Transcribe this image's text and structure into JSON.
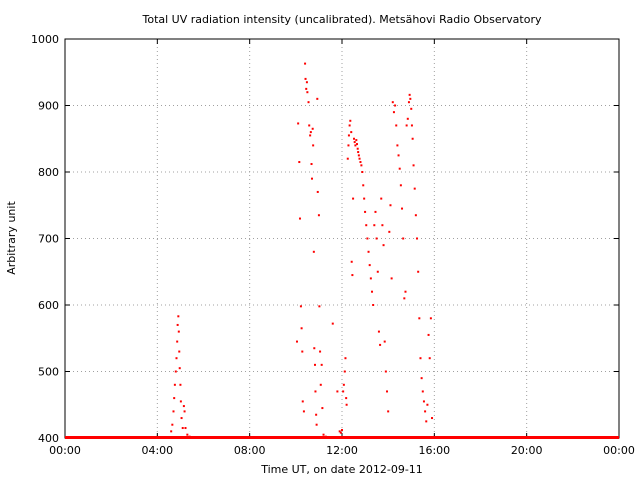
{
  "chart_data": {
    "type": "scatter",
    "title": "Total UV radiation intensity (uncalibrated). Metsähovi Radio Observatory",
    "xlabel": "Time UT, on date 2012-09-11",
    "ylabel": "Arbitrary unit",
    "xlim_hours": [
      0,
      24
    ],
    "ylim": [
      400,
      1000
    ],
    "x_ticks": [
      {
        "hour": 0,
        "label": "00:00"
      },
      {
        "hour": 4,
        "label": "04:00"
      },
      {
        "hour": 8,
        "label": "08:00"
      },
      {
        "hour": 12,
        "label": "12:00"
      },
      {
        "hour": 16,
        "label": "16:00"
      },
      {
        "hour": 20,
        "label": "20:00"
      },
      {
        "hour": 24,
        "label": "00:00"
      }
    ],
    "y_ticks": [
      400,
      500,
      600,
      700,
      800,
      900,
      1000
    ],
    "grid": true,
    "marker_color": "#ff0000",
    "baseline": {
      "value": 400,
      "from_hour": 0,
      "to_hour": 24
    },
    "points": [
      [
        4.6,
        410
      ],
      [
        4.65,
        420
      ],
      [
        4.7,
        440
      ],
      [
        4.73,
        460
      ],
      [
        4.76,
        480
      ],
      [
        4.8,
        500
      ],
      [
        4.83,
        520
      ],
      [
        4.86,
        545
      ],
      [
        4.88,
        570
      ],
      [
        4.91,
        583
      ],
      [
        4.93,
        560
      ],
      [
        4.95,
        530
      ],
      [
        4.97,
        505
      ],
      [
        5.0,
        480
      ],
      [
        5.02,
        455
      ],
      [
        5.05,
        430
      ],
      [
        5.1,
        415
      ],
      [
        5.15,
        448
      ],
      [
        5.18,
        440
      ],
      [
        5.22,
        415
      ],
      [
        5.3,
        405
      ],
      [
        5.4,
        402
      ],
      [
        10.05,
        545
      ],
      [
        10.1,
        873
      ],
      [
        10.15,
        815
      ],
      [
        10.18,
        730
      ],
      [
        10.22,
        598
      ],
      [
        10.25,
        565
      ],
      [
        10.28,
        530
      ],
      [
        10.3,
        455
      ],
      [
        10.35,
        440
      ],
      [
        10.4,
        963
      ],
      [
        10.42,
        940
      ],
      [
        10.45,
        925
      ],
      [
        10.48,
        935
      ],
      [
        10.5,
        920
      ],
      [
        10.55,
        905
      ],
      [
        10.58,
        870
      ],
      [
        10.62,
        855
      ],
      [
        10.65,
        860
      ],
      [
        10.68,
        812
      ],
      [
        10.7,
        790
      ],
      [
        10.73,
        865
      ],
      [
        10.75,
        840
      ],
      [
        10.78,
        680
      ],
      [
        10.8,
        535
      ],
      [
        10.83,
        510
      ],
      [
        10.85,
        470
      ],
      [
        10.88,
        435
      ],
      [
        10.9,
        420
      ],
      [
        10.93,
        910
      ],
      [
        10.95,
        770
      ],
      [
        11.0,
        735
      ],
      [
        11.02,
        598
      ],
      [
        11.05,
        530
      ],
      [
        11.08,
        480
      ],
      [
        11.12,
        510
      ],
      [
        11.15,
        445
      ],
      [
        11.2,
        405
      ],
      [
        11.3,
        402
      ],
      [
        11.6,
        572
      ],
      [
        11.8,
        470
      ],
      [
        11.9,
        410
      ],
      [
        11.95,
        408
      ],
      [
        12.0,
        412
      ],
      [
        12.05,
        470
      ],
      [
        12.08,
        480
      ],
      [
        12.12,
        500
      ],
      [
        12.15,
        520
      ],
      [
        12.18,
        460
      ],
      [
        12.2,
        450
      ],
      [
        12.25,
        820
      ],
      [
        12.28,
        840
      ],
      [
        12.3,
        855
      ],
      [
        12.33,
        870
      ],
      [
        12.36,
        877
      ],
      [
        12.4,
        860
      ],
      [
        12.42,
        665
      ],
      [
        12.45,
        645
      ],
      [
        12.48,
        760
      ],
      [
        12.52,
        850
      ],
      [
        12.55,
        845
      ],
      [
        12.58,
        840
      ],
      [
        12.62,
        848
      ],
      [
        12.65,
        842
      ],
      [
        12.68,
        835
      ],
      [
        12.7,
        830
      ],
      [
        12.73,
        825
      ],
      [
        12.76,
        820
      ],
      [
        12.8,
        815
      ],
      [
        12.84,
        810
      ],
      [
        12.88,
        800
      ],
      [
        12.92,
        780
      ],
      [
        12.96,
        760
      ],
      [
        13.0,
        740
      ],
      [
        13.05,
        720
      ],
      [
        13.1,
        700
      ],
      [
        13.15,
        680
      ],
      [
        13.2,
        660
      ],
      [
        13.25,
        640
      ],
      [
        13.3,
        620
      ],
      [
        13.35,
        600
      ],
      [
        13.4,
        720
      ],
      [
        13.45,
        740
      ],
      [
        13.5,
        700
      ],
      [
        13.55,
        650
      ],
      [
        13.6,
        560
      ],
      [
        13.65,
        540
      ],
      [
        13.7,
        760
      ],
      [
        13.75,
        720
      ],
      [
        13.8,
        690
      ],
      [
        13.85,
        545
      ],
      [
        13.9,
        500
      ],
      [
        13.95,
        470
      ],
      [
        14.0,
        440
      ],
      [
        14.05,
        710
      ],
      [
        14.1,
        750
      ],
      [
        14.15,
        640
      ],
      [
        14.2,
        905
      ],
      [
        14.25,
        890
      ],
      [
        14.3,
        900
      ],
      [
        14.35,
        870
      ],
      [
        14.4,
        840
      ],
      [
        14.45,
        825
      ],
      [
        14.5,
        805
      ],
      [
        14.55,
        780
      ],
      [
        14.6,
        745
      ],
      [
        14.65,
        700
      ],
      [
        14.7,
        610
      ],
      [
        14.75,
        620
      ],
      [
        14.8,
        870
      ],
      [
        14.85,
        880
      ],
      [
        14.9,
        905
      ],
      [
        14.93,
        916
      ],
      [
        14.96,
        910
      ],
      [
        15.0,
        895
      ],
      [
        15.03,
        870
      ],
      [
        15.06,
        850
      ],
      [
        15.1,
        810
      ],
      [
        15.15,
        775
      ],
      [
        15.2,
        735
      ],
      [
        15.25,
        700
      ],
      [
        15.3,
        650
      ],
      [
        15.35,
        580
      ],
      [
        15.4,
        520
      ],
      [
        15.45,
        490
      ],
      [
        15.5,
        470
      ],
      [
        15.55,
        455
      ],
      [
        15.6,
        440
      ],
      [
        15.65,
        425
      ],
      [
        15.7,
        450
      ],
      [
        15.75,
        555
      ],
      [
        15.8,
        520
      ],
      [
        15.85,
        580
      ],
      [
        15.9,
        430
      ]
    ]
  }
}
